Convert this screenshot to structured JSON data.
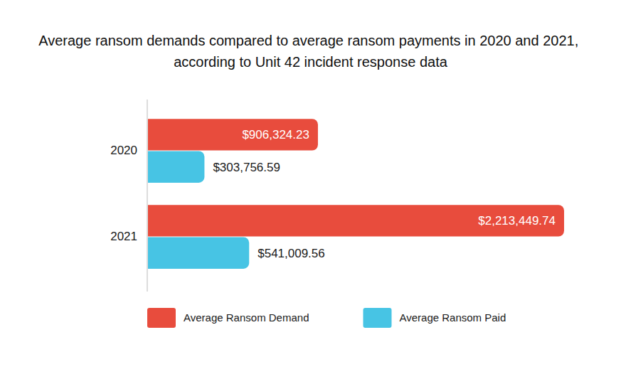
{
  "chart_data": {
    "type": "bar",
    "orientation": "horizontal",
    "title": "Average ransom demands compared to average ransom payments in 2020 and 2021, according to Unit 42 incident response data",
    "categories": [
      "2020",
      "2021"
    ],
    "series": [
      {
        "name": "Average Ransom Demand",
        "color": "#e84c3d",
        "values": [
          906324.23,
          2213449.74
        ],
        "value_labels": [
          "$906,324.23",
          "$2,213,449.74"
        ]
      },
      {
        "name": "Average Ransom Paid",
        "color": "#47c4e4",
        "values": [
          303756.59,
          541009.56
        ],
        "value_labels": [
          "$303,756.59",
          "$541,009.56"
        ]
      }
    ],
    "data_labels": true,
    "legend": "bottom",
    "grid": false,
    "tick_labels": "y"
  }
}
